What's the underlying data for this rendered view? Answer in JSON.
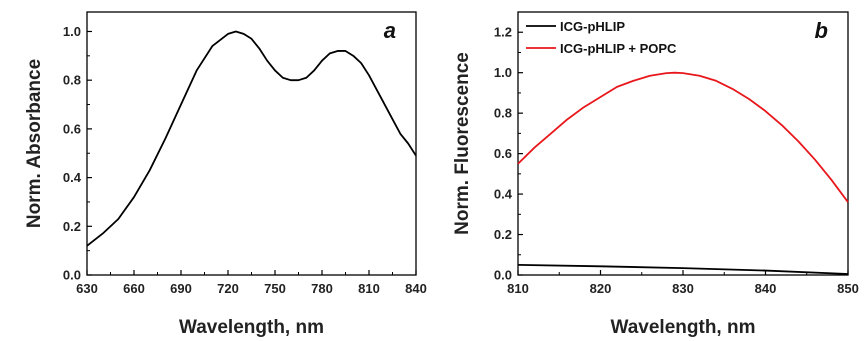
{
  "chart_data": [
    {
      "type": "line",
      "panel_label": "a",
      "xlabel": "Wavelength, nm",
      "ylabel": "Norm. Absorbance",
      "xlim": [
        630,
        840
      ],
      "ylim": [
        0,
        1.08
      ],
      "xticks": [
        630,
        660,
        690,
        720,
        750,
        780,
        810,
        840
      ],
      "yticks": [
        0.0,
        0.2,
        0.4,
        0.6,
        0.8,
        1.0
      ],
      "ytick_labels": [
        "0.0",
        "0.2",
        "0.4",
        "0.6",
        "0.8",
        "1.0"
      ],
      "grid": false,
      "series": [
        {
          "color": "#000000",
          "x": [
            630,
            640,
            650,
            660,
            670,
            680,
            690,
            700,
            710,
            720,
            725,
            730,
            735,
            740,
            745,
            750,
            755,
            760,
            765,
            770,
            775,
            780,
            785,
            790,
            795,
            800,
            805,
            810,
            815,
            820,
            825,
            830,
            835,
            840
          ],
          "y": [
            0.12,
            0.17,
            0.23,
            0.32,
            0.43,
            0.56,
            0.7,
            0.84,
            0.94,
            0.99,
            1.0,
            0.99,
            0.97,
            0.93,
            0.88,
            0.84,
            0.81,
            0.8,
            0.8,
            0.81,
            0.84,
            0.88,
            0.91,
            0.92,
            0.92,
            0.9,
            0.87,
            0.82,
            0.76,
            0.7,
            0.64,
            0.58,
            0.54,
            0.49
          ]
        }
      ]
    },
    {
      "type": "line",
      "panel_label": "b",
      "xlabel": "Wavelength, nm",
      "ylabel": "Norm. Fluorescence",
      "xlim": [
        810,
        850
      ],
      "ylim": [
        0,
        1.3
      ],
      "xticks": [
        810,
        820,
        830,
        840,
        850
      ],
      "yticks": [
        0.0,
        0.2,
        0.4,
        0.6,
        0.8,
        1.0,
        1.2
      ],
      "ytick_labels": [
        "0.0",
        "0.2",
        "0.4",
        "0.6",
        "0.8",
        "1.0",
        "1.2"
      ],
      "grid": false,
      "legend_position": "top-left",
      "series": [
        {
          "name": "ICG-pHLIP",
          "color": "#000000",
          "x": [
            810,
            820,
            830,
            840,
            850
          ],
          "y": [
            0.05,
            0.043,
            0.034,
            0.022,
            0.005
          ]
        },
        {
          "name": "ICG-pHLIP + POPC",
          "color": "#e8171b",
          "x": [
            810,
            812,
            814,
            816,
            818,
            820,
            822,
            824,
            826,
            828,
            829,
            830,
            832,
            834,
            836,
            838,
            840,
            842,
            844,
            846,
            848,
            850
          ],
          "y": [
            0.55,
            0.63,
            0.7,
            0.77,
            0.83,
            0.88,
            0.93,
            0.96,
            0.985,
            0.998,
            1.0,
            0.998,
            0.985,
            0.96,
            0.92,
            0.87,
            0.81,
            0.74,
            0.66,
            0.57,
            0.47,
            0.36
          ]
        }
      ]
    }
  ]
}
